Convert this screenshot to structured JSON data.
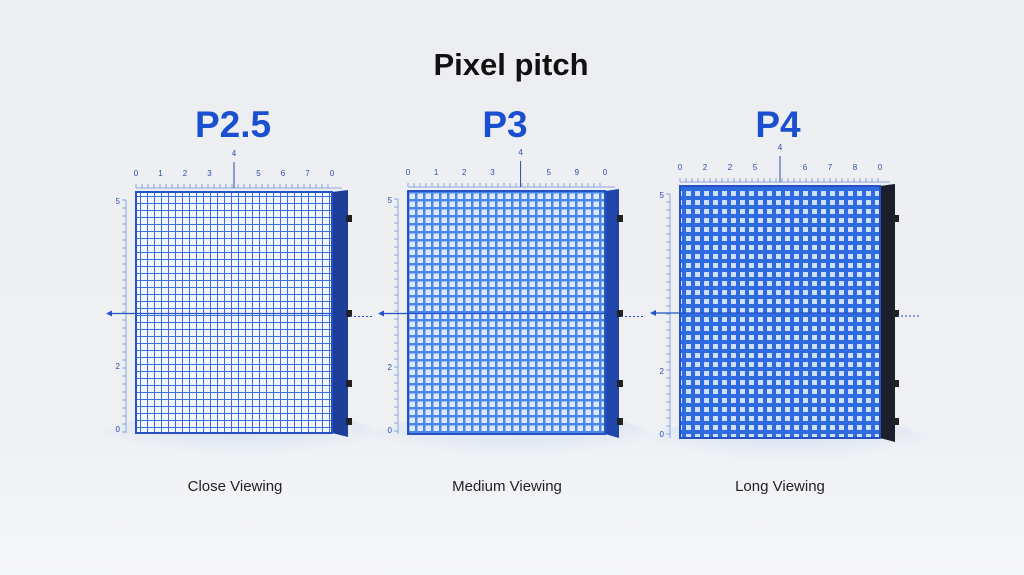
{
  "title": "Pixel pitch",
  "panels": [
    {
      "label": "P2.5",
      "caption": "Close Viewing",
      "top_ruler": [
        "0",
        "1",
        "2",
        "3",
        "4",
        "5",
        "6",
        "7",
        "0"
      ],
      "left_ruler": [
        "5",
        "2",
        "0"
      ]
    },
    {
      "label": "P3",
      "caption": "Medium Viewing",
      "top_ruler": [
        "0",
        "1",
        "2",
        "3",
        "4",
        "5",
        "9",
        "0"
      ],
      "left_ruler": [
        "5",
        "2",
        "0"
      ]
    },
    {
      "label": "P4",
      "caption": "Long Viewing",
      "top_ruler": [
        "0",
        "2",
        "2",
        "5",
        "4",
        "6",
        "7",
        "8",
        "0"
      ],
      "left_ruler": [
        "5",
        "2",
        "0"
      ]
    }
  ]
}
